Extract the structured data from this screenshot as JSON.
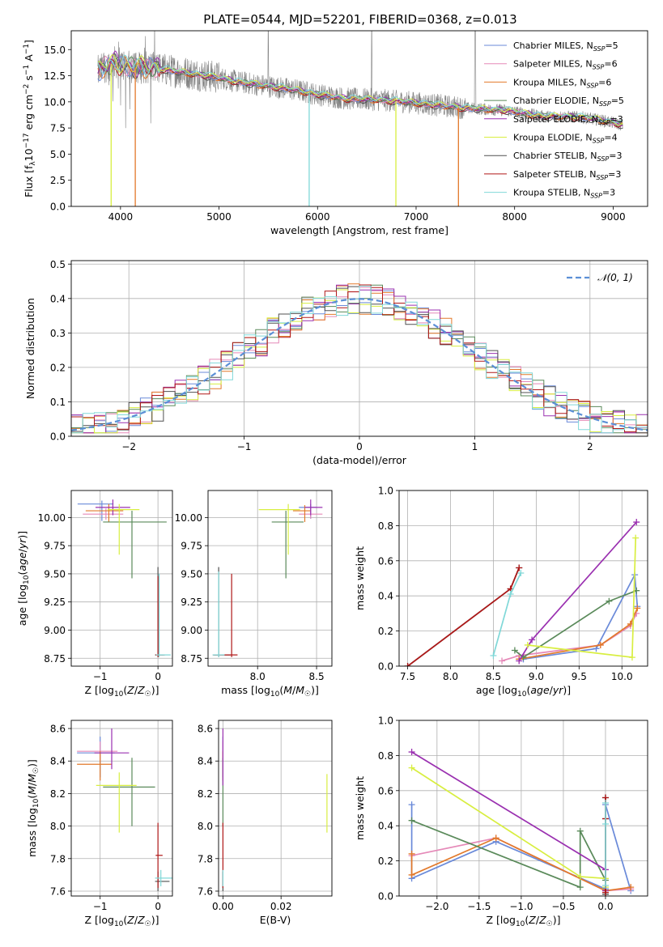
{
  "title": "PLATE=0544, MJD=52201, FIBERID=0368, z=0.013",
  "colors": {
    "Chabrier MILES": "#6a8ad9",
    "Salpeter MILES": "#e589b8",
    "Kroupa MILES": "#e2792a",
    "Chabrier ELODIE": "#5a8a5a",
    "Salpeter ELODIE": "#9a30b0",
    "Kroupa ELODIE": "#d8ee40",
    "Chabrier STELIB": "#505050",
    "Salpeter STELIB": "#b01818",
    "Kroupa STELIB": "#80d8d8",
    "gaussian": "#5b8fd6"
  },
  "chart_data": [
    {
      "id": "spectrum",
      "type": "line",
      "title": "PLATE=0544, MJD=52201, FIBERID=0368, z=0.013",
      "xlabel": "wavelength [Angstrom, rest frame]",
      "ylabel": "Flux [f_λ 10^-17 erg cm^-2 s^-1 A^-1]",
      "xlim": [
        3500,
        9350
      ],
      "ylim": [
        0,
        16.8
      ],
      "xticks": [
        4000,
        5000,
        6000,
        7000,
        8000,
        9000
      ],
      "yticks": [
        0.0,
        2.5,
        5.0,
        7.5,
        10.0,
        12.5,
        15.0
      ],
      "grid": false,
      "legend_position": "upper-right",
      "legend": [
        {
          "name": "Chabrier MILES",
          "nssp": "5"
        },
        {
          "name": "Salpeter MILES",
          "nssp": "6"
        },
        {
          "name": "Kroupa MILES",
          "nssp": "6"
        },
        {
          "name": "Chabrier ELODIE",
          "nssp": "5"
        },
        {
          "name": "Salpeter ELODIE",
          "nssp": "3"
        },
        {
          "name": "Kroupa ELODIE",
          "nssp": "4"
        },
        {
          "name": "Chabrier STELIB",
          "nssp": "3"
        },
        {
          "name": "Salpeter STELIB",
          "nssp": "3"
        },
        {
          "name": "Kroupa STELIB",
          "nssp": "3"
        }
      ],
      "continuum": {
        "x": [
          3780,
          3850,
          3950,
          4000,
          4100,
          4300,
          4500,
          4800,
          5000,
          5200,
          5500,
          5800,
          6000,
          6300,
          6600,
          6900,
          7200,
          7500,
          7700,
          7900,
          8100,
          8300,
          8500,
          8700,
          8900,
          9100
        ],
        "y": [
          12.9,
          13.4,
          13.8,
          13.6,
          13.3,
          13.3,
          13.0,
          12.6,
          12.3,
          11.9,
          11.5,
          11.1,
          10.7,
          10.3,
          10.2,
          10.0,
          9.7,
          9.4,
          9.3,
          9.2,
          8.9,
          8.6,
          8.6,
          8.5,
          8.2,
          7.8
        ]
      },
      "dips": [
        {
          "x": 3905,
          "y": 0.0
        },
        {
          "x": 4150,
          "y": 0.0
        },
        {
          "x": 5915,
          "y": 0.0
        },
        {
          "x": 6795,
          "y": 0.0
        },
        {
          "x": 7430,
          "y": 0.0
        }
      ]
    },
    {
      "id": "residuals",
      "type": "histogram",
      "xlabel": "(data-model)/error",
      "ylabel": "Normed distribution",
      "xlim": [
        -2.5,
        2.5
      ],
      "ylim": [
        0,
        0.51
      ],
      "xticks": [
        -2,
        -1,
        0,
        1,
        2
      ],
      "yticks": [
        0.0,
        0.1,
        0.2,
        0.3,
        0.4,
        0.5
      ],
      "grid": true,
      "legend": [
        {
          "name": "𝒩(0, 1)",
          "style": "dashed"
        }
      ],
      "legend_position": "upper-right",
      "bin_width": 0.1,
      "bin_start": -2.5
    },
    {
      "id": "age-vs-Z",
      "type": "scatter",
      "xlabel": "Z [log10(Z/Z☉)]",
      "ylabel": "age  [log10(age/yr)]",
      "xlim": [
        -1.5,
        0.25
      ],
      "ylim": [
        8.68,
        10.24
      ],
      "xticks": [
        -1,
        0
      ],
      "yticks": [
        8.75,
        9.0,
        9.25,
        9.5,
        9.75,
        10.0
      ],
      "grid": true,
      "points": [
        {
          "series": "Chabrier MILES",
          "x": -0.97,
          "y": 10.12,
          "xerr": [
            0.42,
            0.2
          ],
          "yerr": [
            0.15,
            0.03
          ]
        },
        {
          "series": "Salpeter MILES",
          "x": -0.9,
          "y": 10.03,
          "xerr": [
            0.4,
            0.3
          ],
          "yerr": [
            0.05,
            0.05
          ]
        },
        {
          "series": "Kroupa MILES",
          "x": -0.85,
          "y": 10.06,
          "xerr": [
            0.4,
            0.25
          ],
          "yerr": [
            0.1,
            0.06
          ]
        },
        {
          "series": "Chabrier ELODIE",
          "x": -0.45,
          "y": 9.96,
          "xerr": [
            0.5,
            0.6
          ],
          "yerr": [
            0.5,
            0.1
          ]
        },
        {
          "series": "Salpeter ELODIE",
          "x": -0.78,
          "y": 10.09,
          "xerr": [
            0.3,
            0.3
          ],
          "yerr": [
            0.07,
            0.07
          ]
        },
        {
          "series": "Kroupa ELODIE",
          "x": -0.67,
          "y": 10.07,
          "xerr": [
            0.2,
            0.35
          ],
          "yerr": [
            0.4,
            0.05
          ]
        },
        {
          "series": "Chabrier STELIB",
          "x": 0.0,
          "y": 8.78,
          "xerr": [
            0.05,
            0.1
          ],
          "yerr": [
            0.02,
            0.78
          ]
        },
        {
          "series": "Salpeter STELIB",
          "x": 0.0,
          "y": 8.78,
          "xerr": [
            0.04,
            0.12
          ],
          "yerr": [
            0.02,
            0.7
          ]
        },
        {
          "series": "Kroupa STELIB",
          "x": 0.02,
          "y": 8.78,
          "xerr": [
            0.05,
            0.2
          ],
          "yerr": [
            0.02,
            0.72
          ]
        }
      ]
    },
    {
      "id": "age-vs-mass",
      "type": "scatter",
      "xlabel": "mass [log10(M/M☉)]",
      "ylabel": "",
      "xlim": [
        7.58,
        8.63
      ],
      "ylim": [
        8.68,
        10.24
      ],
      "xticks": [
        8.0,
        8.5
      ],
      "yticks": [
        8.75,
        9.0,
        9.25,
        9.5,
        9.75,
        10.0
      ],
      "grid": true,
      "points": [
        {
          "series": "Chabrier MILES",
          "x": 8.45,
          "y": 10.09,
          "xerr": [
            0.1,
            0.05
          ],
          "yerr": [
            0.1,
            0.03
          ]
        },
        {
          "series": "Salpeter MILES",
          "x": 8.45,
          "y": 10.03,
          "xerr": [
            0.1,
            0.1
          ],
          "yerr": [
            0.04,
            0.04
          ]
        },
        {
          "series": "Kroupa MILES",
          "x": 8.4,
          "y": 10.06,
          "xerr": [
            0.1,
            0.05
          ],
          "yerr": [
            0.1,
            0.05
          ]
        },
        {
          "series": "Chabrier ELODIE",
          "x": 8.24,
          "y": 9.96,
          "xerr": [
            0.12,
            0.15
          ],
          "yerr": [
            0.5,
            0.1
          ]
        },
        {
          "series": "Salpeter ELODIE",
          "x": 8.45,
          "y": 10.09,
          "xerr": [
            0.05,
            0.1
          ],
          "yerr": [
            0.07,
            0.07
          ]
        },
        {
          "series": "Kroupa ELODIE",
          "x": 8.26,
          "y": 10.07,
          "xerr": [
            0.25,
            0.1
          ],
          "yerr": [
            0.4,
            0.05
          ]
        },
        {
          "series": "Chabrier STELIB",
          "x": 7.67,
          "y": 8.78,
          "xerr": [
            0.05,
            0.1
          ],
          "yerr": [
            0.02,
            0.78
          ]
        },
        {
          "series": "Salpeter STELIB",
          "x": 7.78,
          "y": 8.78,
          "xerr": [
            0.15,
            0.05
          ],
          "yerr": [
            0.02,
            0.72
          ]
        },
        {
          "series": "Kroupa STELIB",
          "x": 7.67,
          "y": 8.78,
          "xerr": [
            0.05,
            0.05
          ],
          "yerr": [
            0.02,
            0.74
          ]
        }
      ]
    },
    {
      "id": "weight-vs-age",
      "type": "line",
      "xlabel": "age  [log10(age/yr)]",
      "ylabel": "mass weight",
      "xlim": [
        7.4,
        10.3
      ],
      "ylim": [
        0,
        1.0
      ],
      "xticks": [
        7.5,
        8.0,
        8.5,
        9.0,
        9.5,
        10.0
      ],
      "yticks": [
        0.0,
        0.2,
        0.4,
        0.6,
        0.8,
        1.0
      ],
      "grid": true,
      "series": [
        {
          "name": "Chabrier MILES",
          "x": [
            8.85,
            9.7,
            10.15,
            10.18
          ],
          "y": [
            0.04,
            0.1,
            0.52,
            0.34
          ]
        },
        {
          "name": "Salpeter MILES",
          "x": [
            8.6,
            8.8,
            9.75,
            10.1,
            10.17
          ],
          "y": [
            0.03,
            0.06,
            0.12,
            0.23,
            0.3
          ]
        },
        {
          "name": "Kroupa MILES",
          "x": [
            8.8,
            9.75,
            10.1,
            10.18
          ],
          "y": [
            0.04,
            0.12,
            0.24,
            0.33
          ]
        },
        {
          "name": "Chabrier ELODIE",
          "x": [
            8.75,
            8.85,
            9.85,
            10.17
          ],
          "y": [
            0.09,
            0.05,
            0.37,
            0.43
          ]
        },
        {
          "name": "Salpeter ELODIE",
          "x": [
            8.8,
            8.95,
            10.17
          ],
          "y": [
            0.03,
            0.15,
            0.82
          ]
        },
        {
          "name": "Kroupa ELODIE",
          "x": [
            8.9,
            10.12,
            10.16
          ],
          "y": [
            0.12,
            0.05,
            0.73
          ]
        },
        {
          "name": "Chabrier STELIB",
          "x": [
            7.5,
            8.7,
            8.8
          ],
          "y": [
            0.0,
            0.44,
            0.56
          ]
        },
        {
          "name": "Salpeter STELIB",
          "x": [
            7.5,
            8.7,
            8.8
          ],
          "y": [
            0.0,
            0.44,
            0.56
          ]
        },
        {
          "name": "Kroupa STELIB",
          "x": [
            8.5,
            8.7,
            8.82
          ],
          "y": [
            0.06,
            0.41,
            0.53
          ]
        }
      ]
    },
    {
      "id": "mass-vs-Z",
      "type": "scatter",
      "xlabel": "Z [log10(Z/Z☉)]",
      "ylabel": "mass [log10(M/M☉)]",
      "xlim": [
        -1.5,
        0.25
      ],
      "ylim": [
        7.57,
        8.65
      ],
      "xticks": [
        -1,
        0
      ],
      "yticks": [
        7.6,
        7.8,
        8.0,
        8.2,
        8.4,
        8.6
      ],
      "grid": true,
      "points": [
        {
          "series": "Chabrier MILES",
          "x": -1.0,
          "y": 8.45,
          "xerr": [
            0.4,
            0.25
          ],
          "yerr": [
            0.15,
            0.1
          ]
        },
        {
          "series": "Salpeter MILES",
          "x": -1.0,
          "y": 8.46,
          "xerr": [
            0.4,
            0.3
          ],
          "yerr": [
            0.06,
            0.06
          ]
        },
        {
          "series": "Kroupa MILES",
          "x": -1.0,
          "y": 8.38,
          "xerr": [
            0.4,
            0.2
          ],
          "yerr": [
            0.1,
            0.08
          ]
        },
        {
          "series": "Chabrier ELODIE",
          "x": -0.45,
          "y": 8.24,
          "xerr": [
            0.5,
            0.4
          ],
          "yerr": [
            0.24,
            0.18
          ]
        },
        {
          "series": "Salpeter ELODIE",
          "x": -0.8,
          "y": 8.45,
          "xerr": [
            0.3,
            0.3
          ],
          "yerr": [
            0.1,
            0.15
          ]
        },
        {
          "series": "Kroupa ELODIE",
          "x": -0.67,
          "y": 8.25,
          "xerr": [
            0.4,
            0.3
          ],
          "yerr": [
            0.29,
            0.08
          ]
        },
        {
          "series": "Chabrier STELIB",
          "x": 0.0,
          "y": 7.66,
          "xerr": [
            0.05,
            0.2
          ],
          "yerr": [
            0.06,
            0.06
          ]
        },
        {
          "series": "Salpeter STELIB",
          "x": 0.0,
          "y": 7.82,
          "xerr": [
            0.04,
            0.08
          ],
          "yerr": [
            0.2,
            0.2
          ]
        },
        {
          "series": "Kroupa STELIB",
          "x": 0.05,
          "y": 7.68,
          "xerr": [
            0.1,
            0.2
          ],
          "yerr": [
            0.05,
            0.05
          ]
        }
      ]
    },
    {
      "id": "mass-vs-EBV",
      "type": "scatter",
      "xlabel": "E(B-V)",
      "ylabel": "",
      "xlim": [
        -0.0015,
        0.0375
      ],
      "ylim": [
        7.57,
        8.65
      ],
      "xticks": [
        0.0,
        0.02
      ],
      "yticks": [
        7.6,
        7.8,
        8.0,
        8.2,
        8.4,
        8.6
      ],
      "grid": true,
      "points": [
        {
          "series": "Chabrier MILES",
          "x": 0.0,
          "y": 8.45,
          "xerr": [
            0,
            0
          ],
          "yerr": [
            0.15,
            0.1
          ]
        },
        {
          "series": "Salpeter MILES",
          "x": 0.0,
          "y": 8.46,
          "xerr": [
            0,
            0
          ],
          "yerr": [
            0.06,
            0.06
          ]
        },
        {
          "series": "Kroupa MILES",
          "x": 0.0,
          "y": 8.38,
          "xerr": [
            0,
            0
          ],
          "yerr": [
            0.1,
            0.08
          ]
        },
        {
          "series": "Chabrier ELODIE",
          "x": 0.0,
          "y": 8.24,
          "xerr": [
            0,
            0
          ],
          "yerr": [
            0.24,
            0.18
          ]
        },
        {
          "series": "Salpeter ELODIE",
          "x": 0.0,
          "y": 8.45,
          "xerr": [
            0,
            0
          ],
          "yerr": [
            0.2,
            0.15
          ]
        },
        {
          "series": "Kroupa ELODIE",
          "x": 0.0358,
          "y": 8.14,
          "xerr": [
            0,
            0
          ],
          "yerr": [
            0.18,
            0.18
          ]
        },
        {
          "series": "Chabrier STELIB",
          "x": 0.0,
          "y": 7.66,
          "xerr": [
            0,
            0
          ],
          "yerr": [
            0.06,
            0.06
          ]
        },
        {
          "series": "Salpeter STELIB",
          "x": 0.0,
          "y": 7.82,
          "xerr": [
            0,
            0
          ],
          "yerr": [
            0.2,
            0.2
          ]
        },
        {
          "series": "Kroupa STELIB",
          "x": 0.0,
          "y": 7.68,
          "xerr": [
            0,
            0
          ],
          "yerr": [
            0.05,
            0.05
          ]
        }
      ]
    },
    {
      "id": "weight-vs-Z",
      "type": "line",
      "xlabel": "Z [log10(Z/Z☉)]",
      "ylabel": "mass weight",
      "xlim": [
        -2.45,
        0.5
      ],
      "ylim": [
        0,
        1.0
      ],
      "xticks": [
        -2.0,
        -1.5,
        -1.0,
        -0.5,
        0.0
      ],
      "yticks": [
        0.0,
        0.2,
        0.4,
        0.6,
        0.8,
        1.0
      ],
      "grid": true,
      "series": [
        {
          "name": "Chabrier MILES",
          "x": [
            -2.3,
            -2.3,
            -1.3,
            0.0,
            0.0,
            0.3
          ],
          "y": [
            0.52,
            0.1,
            0.31,
            0.04,
            0.52,
            0.03
          ]
        },
        {
          "name": "Salpeter MILES",
          "x": [
            -2.3,
            -1.3,
            0.0,
            0.3
          ],
          "y": [
            0.23,
            0.33,
            0.03,
            0.04
          ]
        },
        {
          "name": "Kroupa MILES",
          "x": [
            -2.3,
            -2.3,
            -1.3,
            0.0,
            0.3
          ],
          "y": [
            0.24,
            0.12,
            0.33,
            0.03,
            0.05
          ]
        },
        {
          "name": "Chabrier ELODIE",
          "x": [
            -2.3,
            -0.3,
            -0.3,
            0.0
          ],
          "y": [
            0.43,
            0.05,
            0.37,
            0.09
          ]
        },
        {
          "name": "Salpeter ELODIE",
          "x": [
            -2.3,
            0.0,
            0.0
          ],
          "y": [
            0.82,
            0.15,
            0.03
          ]
        },
        {
          "name": "Kroupa ELODIE",
          "x": [
            -2.3,
            -0.3,
            0.0,
            0.0
          ],
          "y": [
            0.73,
            0.11,
            0.1,
            0.05
          ]
        },
        {
          "name": "Chabrier STELIB",
          "x": [
            0.0,
            0.0,
            0.0
          ],
          "y": [
            0.01,
            0.44,
            0.56
          ]
        },
        {
          "name": "Salpeter STELIB",
          "x": [
            0.0,
            0.0,
            0.0
          ],
          "y": [
            0.02,
            0.44,
            0.56
          ]
        },
        {
          "name": "Kroupa STELIB",
          "x": [
            0.0,
            0.0,
            0.0
          ],
          "y": [
            0.06,
            0.41,
            0.53
          ]
        }
      ]
    }
  ]
}
